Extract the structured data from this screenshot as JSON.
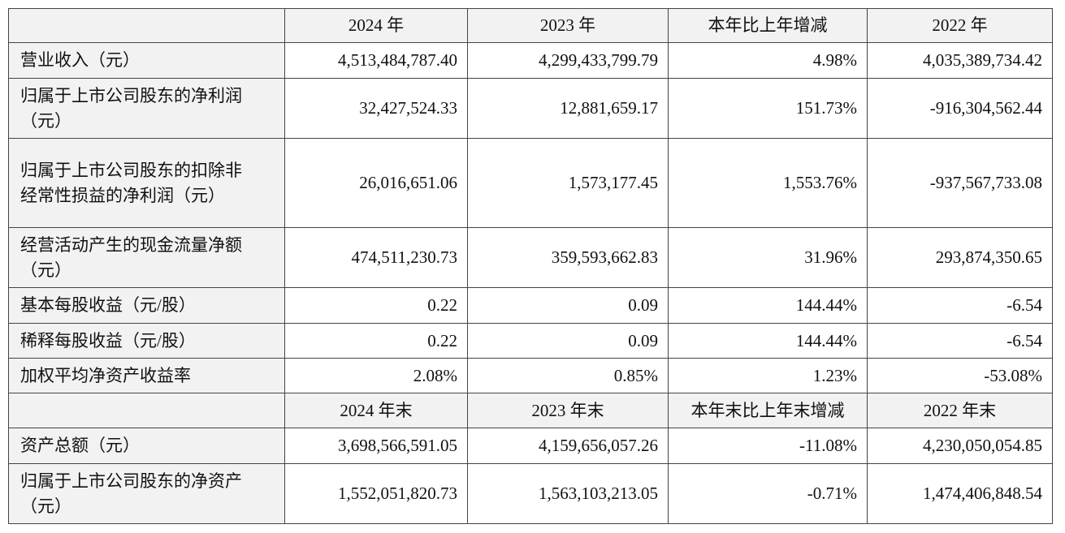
{
  "table": {
    "header": [
      "2024 年",
      "2023 年",
      "本年比上年增减",
      "2022 年"
    ],
    "rows": [
      [
        "营业收入（元）",
        "4,513,484,787.40",
        "4,299,433,799.79",
        "4.98%",
        "4,035,389,734.42"
      ],
      [
        "归属于上市公司股东的净利润（元）",
        "32,427,524.33",
        "12,881,659.17",
        "151.73%",
        "-916,304,562.44"
      ],
      [
        "归属于上市公司股东的扣除非经常性损益的净利润（元）",
        "26,016,651.06",
        "1,573,177.45",
        "1,553.76%",
        "-937,567,733.08"
      ],
      [
        "经营活动产生的现金流量净额（元）",
        "474,511,230.73",
        "359,593,662.83",
        "31.96%",
        "293,874,350.65"
      ],
      [
        "基本每股收益（元/股）",
        "0.22",
        "0.09",
        "144.44%",
        "-6.54"
      ],
      [
        "稀释每股收益（元/股）",
        "0.22",
        "0.09",
        "144.44%",
        "-6.54"
      ],
      [
        "加权平均净资产收益率",
        "2.08%",
        "0.85%",
        "1.23%",
        "-53.08%"
      ]
    ],
    "header2": [
      "2024 年末",
      "2023 年末",
      "本年末比上年末增减",
      "2022 年末"
    ],
    "rows2": [
      [
        "资产总额（元）",
        "3,698,566,591.05",
        "4,159,656,057.26",
        "-11.08%",
        "4,230,050,054.85"
      ],
      [
        "归属于上市公司股东的净资产（元）",
        "1,552,051,820.73",
        "1,563,103,213.05",
        "-0.71%",
        "1,474,406,848.54"
      ]
    ]
  }
}
